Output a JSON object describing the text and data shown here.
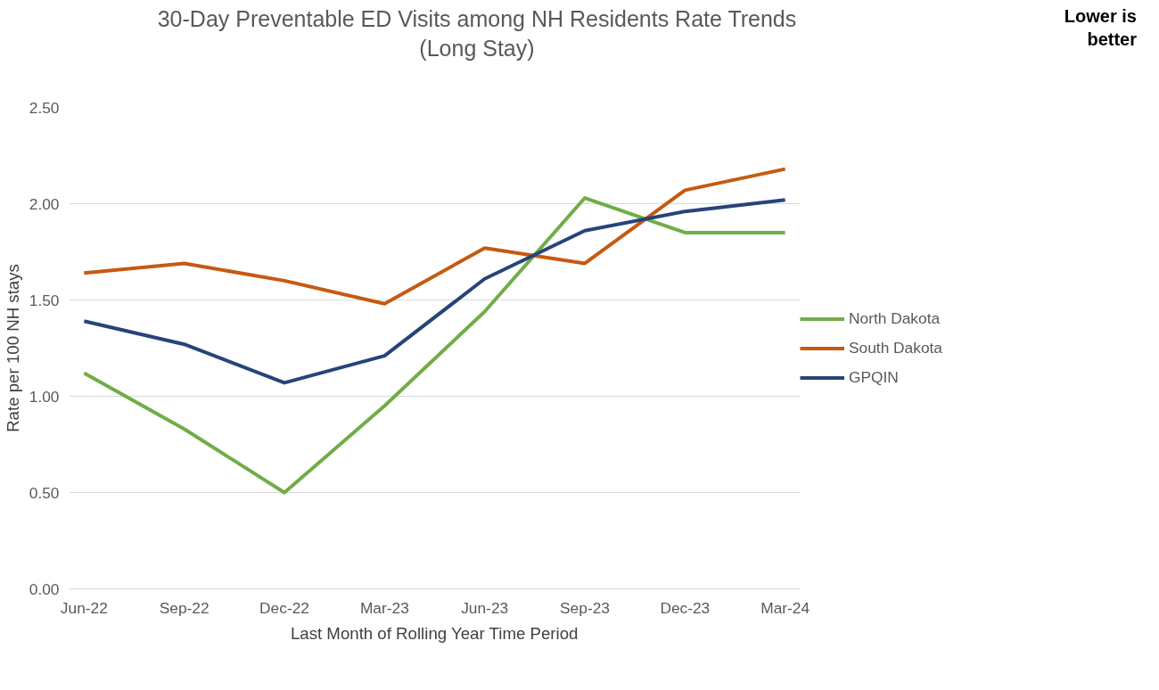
{
  "chart_data": {
    "type": "line",
    "title": "30-Day Preventable ED Visits among NH Residents Rate Trends\n(Long Stay)",
    "xlabel": "Last Month of Rolling Year Time Period",
    "ylabel": "Rate per 100 NH stays",
    "annotations": [
      "Lower is\nbetter"
    ],
    "categories": [
      "Jun-22",
      "Sep-22",
      "Dec-22",
      "Mar-23",
      "Jun-23",
      "Sep-23",
      "Dec-23",
      "Mar-24"
    ],
    "series": [
      {
        "name": "North Dakota",
        "color": "#70ad47",
        "values": [
          1.12,
          0.83,
          0.5,
          0.95,
          1.44,
          2.03,
          1.85,
          1.85
        ]
      },
      {
        "name": "South Dakota",
        "color": "#c55a11",
        "values": [
          1.64,
          1.69,
          1.6,
          1.48,
          1.77,
          1.69,
          2.07,
          2.18
        ]
      },
      {
        "name": "GPQIN",
        "color": "#264478",
        "values": [
          1.39,
          1.27,
          1.07,
          1.21,
          1.61,
          1.86,
          1.96,
          2.02
        ]
      }
    ],
    "ylim": [
      0,
      2.5
    ],
    "yticks": [
      {
        "value": 0,
        "label": "0.00"
      },
      {
        "value": 0.5,
        "label": "0.50"
      },
      {
        "value": 1,
        "label": "1.00"
      },
      {
        "value": 1.5,
        "label": "1.50"
      },
      {
        "value": 2,
        "label": "2.00"
      },
      {
        "value": 2.5,
        "label": "2.50"
      }
    ],
    "grid": "y",
    "legend": "right",
    "marker": "none",
    "line_style": "solid"
  }
}
